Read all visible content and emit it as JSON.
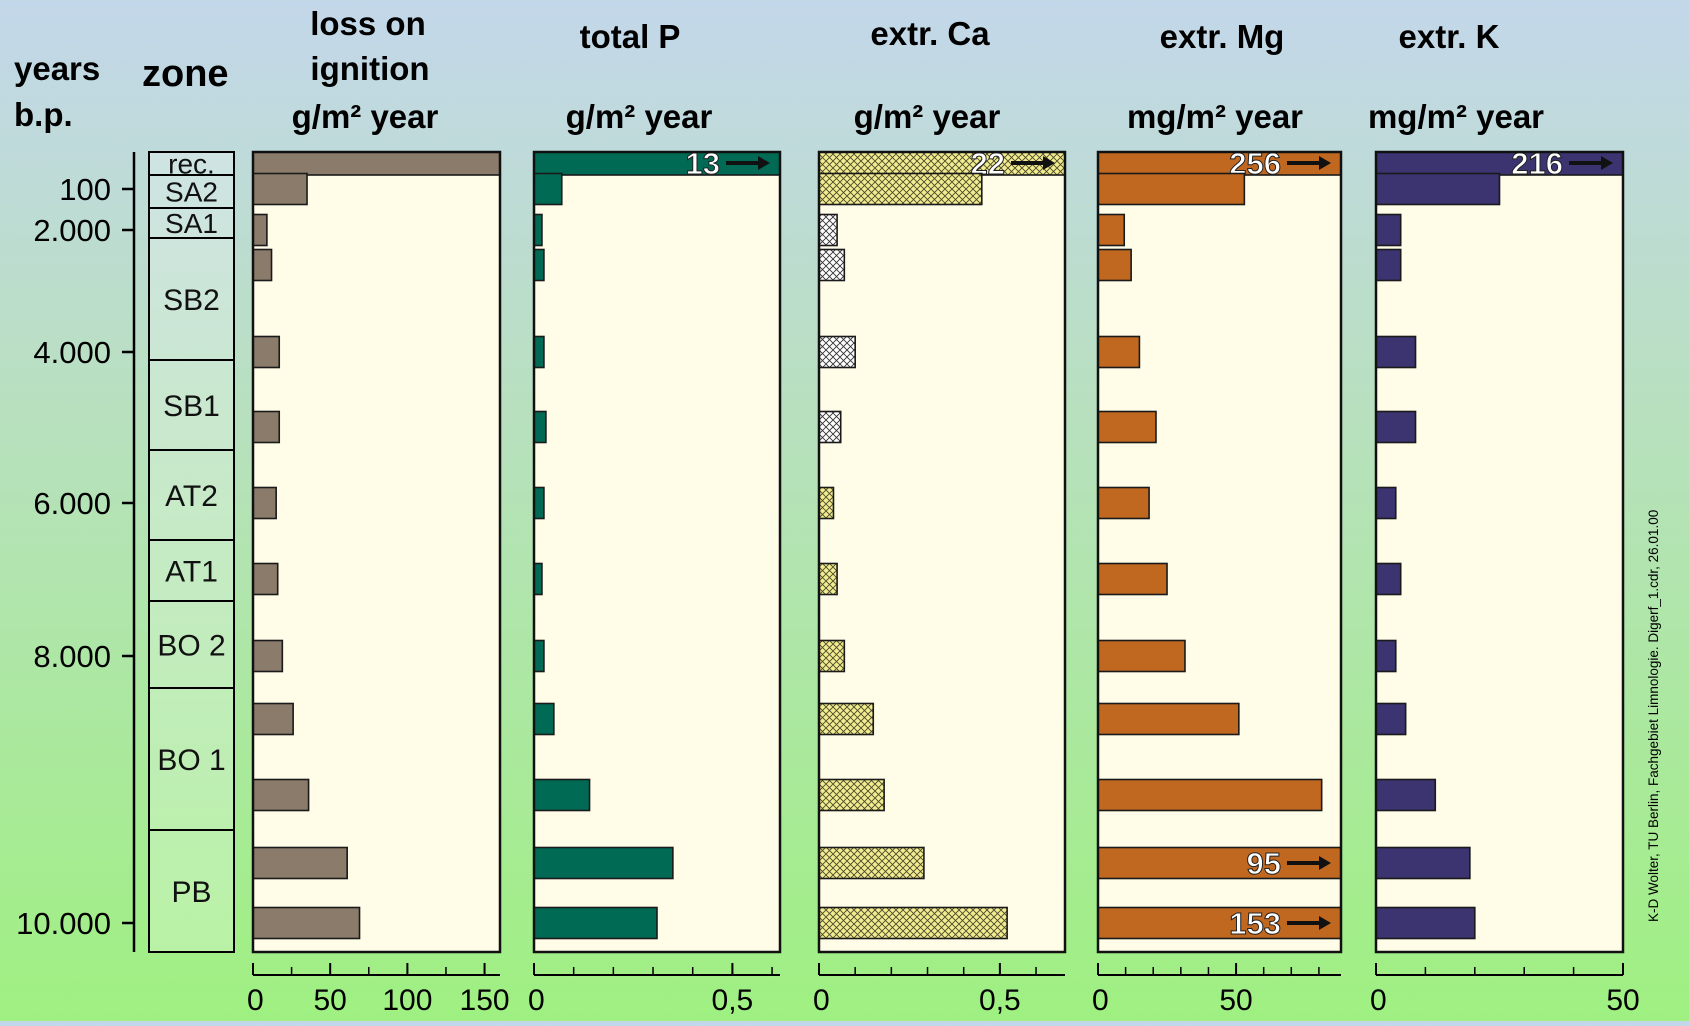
{
  "headers": {
    "years_1": "years",
    "years_2": "b.p.",
    "zone": "zone",
    "loi_1": "loss on",
    "loi_2": "ignition",
    "loi_unit": "g/m² year",
    "p_title": "total P",
    "p_unit": "g/m² year",
    "ca_title": "extr. Ca",
    "ca_unit": "g/m² year",
    "mg_title": "extr. Mg",
    "mg_unit": "mg/m² year",
    "k_title": "extr. K",
    "k_unit": "mg/m² year"
  },
  "credit": "K-D Wolter, TU Berlin, Fachgebiet Limnologie. Digerf_1.cdr, 26.01.00",
  "chart_data": {
    "type": "bar",
    "orientation": "horizontal",
    "age_ticks": [
      {
        "label": "100",
        "row": 1
      },
      {
        "label": "2.000",
        "row": 2
      },
      {
        "label": "4.000",
        "row": 4
      },
      {
        "label": "6.000",
        "row": 6
      },
      {
        "label": "8.000",
        "row": 8
      },
      {
        "label": "10.000",
        "row": 12
      }
    ],
    "zones": [
      {
        "label": "rec.",
        "rows": [
          0
        ]
      },
      {
        "label": "SA2",
        "rows": [
          1
        ]
      },
      {
        "label": "SA1",
        "rows": [
          2
        ]
      },
      {
        "label": "SB2",
        "rows": [
          3,
          4
        ]
      },
      {
        "label": "SB1",
        "rows": [
          5
        ]
      },
      {
        "label": "AT2",
        "rows": [
          6
        ]
      },
      {
        "label": "AT1",
        "rows": [
          7
        ]
      },
      {
        "label": "BO 2",
        "rows": [
          8
        ]
      },
      {
        "label": "BO 1",
        "rows": [
          9,
          10
        ]
      },
      {
        "label": "PB",
        "rows": [
          11,
          12
        ]
      }
    ],
    "panels": [
      {
        "name": "loss on ignition",
        "unit": "g/m² year",
        "xlim": [
          0,
          160
        ],
        "ticks": [
          "0",
          "50",
          "100",
          "150"
        ],
        "tick_values": [
          0,
          50,
          100,
          150
        ],
        "color": "#8b7b6a",
        "pattern": "solid",
        "values": [
          160,
          35,
          9,
          12,
          17,
          17,
          15,
          16,
          19,
          26,
          36,
          61,
          69
        ],
        "overflow_labels": {}
      },
      {
        "name": "total P",
        "unit": "g/m² year",
        "xlim": [
          0,
          0.62
        ],
        "ticks": [
          "0",
          "0,5"
        ],
        "tick_values": [
          0,
          0.5
        ],
        "color": "#006a55",
        "pattern": "solid",
        "values": [
          0.62,
          0.07,
          0.02,
          0.025,
          0.025,
          0.03,
          0.025,
          0.02,
          0.025,
          0.05,
          0.14,
          0.35,
          0.31
        ],
        "overflow_labels": {
          "0": "13"
        }
      },
      {
        "name": "extr. Ca",
        "unit": "g/m² year",
        "xlim": [
          0,
          0.68
        ],
        "ticks": [
          "0",
          "0,5"
        ],
        "tick_values": [
          0,
          0.5
        ],
        "color": "#f2eb90",
        "pattern": "crosshatch",
        "values": [
          0.68,
          0.45,
          0.05,
          0.07,
          0.1,
          0.06,
          0.04,
          0.05,
          0.07,
          0.15,
          0.18,
          0.29,
          0.52
        ],
        "overflow_labels": {
          "0": "22"
        }
      },
      {
        "name": "extr. Mg",
        "unit": "mg/m² year",
        "xlim": [
          0,
          88
        ],
        "ticks": [
          "0",
          "50"
        ],
        "tick_values": [
          0,
          50
        ],
        "color": "#c06820",
        "pattern": "solid",
        "values": [
          88,
          53,
          9.5,
          12,
          15,
          21,
          18.5,
          25,
          31.5,
          51,
          81,
          88,
          88
        ],
        "overflow_labels": {
          "0": "256",
          "11": "95",
          "12": "153"
        }
      },
      {
        "name": "extr. K",
        "unit": "mg/m² year",
        "xlim": [
          0,
          50
        ],
        "ticks": [
          "0",
          "50"
        ],
        "tick_values": [
          0,
          50
        ],
        "color": "#3b3470",
        "pattern": "solid",
        "values": [
          50,
          25,
          5,
          5,
          8,
          8,
          4,
          5,
          4,
          6,
          12,
          19,
          20
        ],
        "overflow_labels": {
          "0": "216"
        }
      }
    ]
  }
}
